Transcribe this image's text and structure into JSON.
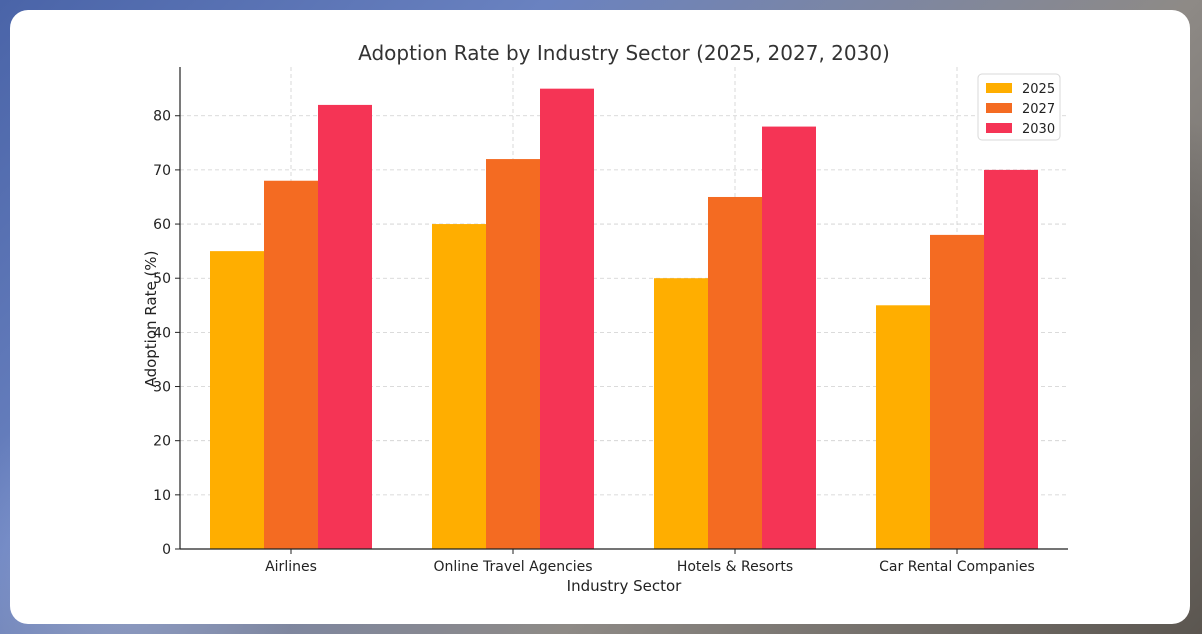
{
  "chart_data": {
    "type": "bar",
    "title": "Adoption Rate by Industry Sector (2025, 2027, 2030)",
    "xlabel": "Industry Sector",
    "ylabel": "Adoption Rate (%)",
    "categories": [
      "Airlines",
      "Online Travel Agencies",
      "Hotels & Resorts",
      "Car Rental Companies"
    ],
    "series": [
      {
        "name": "2025",
        "color": "#ffae00",
        "values": [
          55,
          60,
          50,
          45
        ]
      },
      {
        "name": "2027",
        "color": "#f46b22",
        "values": [
          68,
          72,
          65,
          58
        ]
      },
      {
        "name": "2030",
        "color": "#f53455",
        "values": [
          82,
          85,
          78,
          70
        ]
      }
    ],
    "yticks": [
      0,
      10,
      20,
      30,
      40,
      50,
      60,
      70,
      80
    ],
    "ylim": [
      0,
      89
    ],
    "grid": true,
    "legend_position": "top-right"
  }
}
